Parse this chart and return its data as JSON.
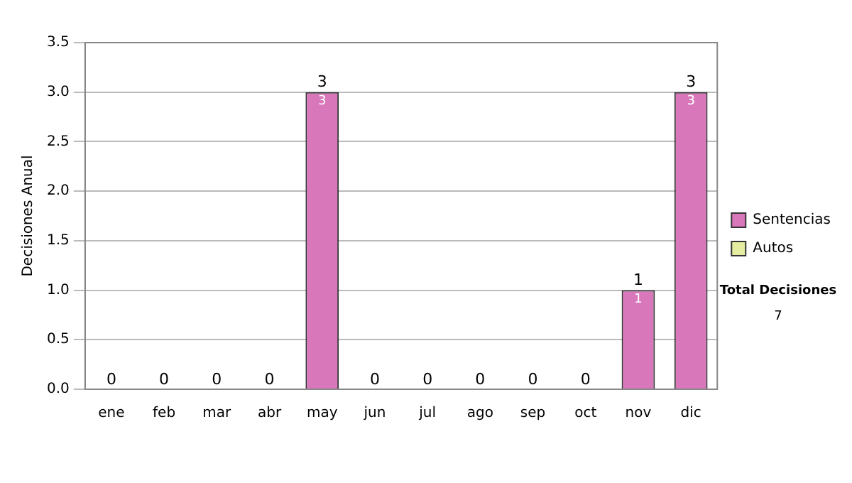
{
  "chart_data": {
    "type": "bar",
    "ylabel": "Decisiones Anual",
    "categories": [
      "ene",
      "feb",
      "mar",
      "abr",
      "may",
      "jun",
      "jul",
      "ago",
      "sep",
      "oct",
      "nov",
      "dic"
    ],
    "stacked": true,
    "series": [
      {
        "name": "Sentencias",
        "color": "#d977bb",
        "values": [
          0,
          0,
          0,
          0,
          3,
          0,
          0,
          0,
          0,
          0,
          1,
          3
        ],
        "value_labels": [
          null,
          null,
          null,
          null,
          "3",
          null,
          null,
          null,
          null,
          null,
          "1",
          "3"
        ]
      },
      {
        "name": "Autos",
        "color": "#e4eda0",
        "values": [
          0,
          0,
          0,
          0,
          0,
          0,
          0,
          0,
          0,
          0,
          0,
          0
        ]
      }
    ],
    "totals": [
      "0",
      "0",
      "0",
      "0",
      "3",
      "0",
      "0",
      "0",
      "0",
      "0",
      "1",
      "3"
    ],
    "ylim": [
      0,
      3.5
    ],
    "yticks": [
      {
        "value": 0,
        "label": "0.0"
      },
      {
        "value": 0.5,
        "label": "0.5"
      },
      {
        "value": 1,
        "label": "1.0"
      },
      {
        "value": 1.5,
        "label": "1.5"
      },
      {
        "value": 2,
        "label": "2.0"
      },
      {
        "value": 2.5,
        "label": "2.5"
      },
      {
        "value": 3,
        "label": "3.0"
      },
      {
        "value": 3.5,
        "label": "3.5"
      }
    ],
    "grid": "y",
    "legend": "right",
    "annotations": [
      "Total Decisiones",
      "7"
    ]
  }
}
